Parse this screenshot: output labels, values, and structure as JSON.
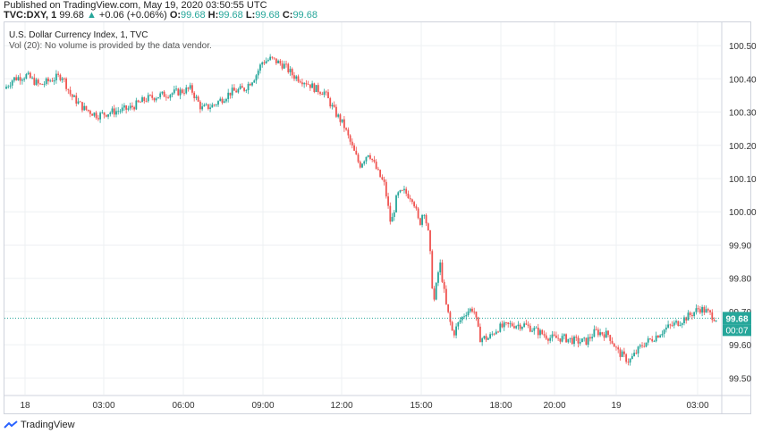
{
  "published": "Published on TradingView.com, May 19, 2020 03:50:55 UTC",
  "ohlc": {
    "symbol": "TVC:DXY, 1",
    "price": "99.68",
    "change": "+0.06 (+0.06%)",
    "o_label": "O:",
    "o": "99.68",
    "h_label": "H:",
    "h": "99.68",
    "l_label": "L:",
    "l": "99.68",
    "c_label": "C:",
    "c": "99.68"
  },
  "legend": {
    "title": "U.S. Dollar Currency Index, 1, TVC",
    "volume_note": "Vol (20): No volume is provided by the data vendor."
  },
  "brand": "TradingView",
  "colors": {
    "up": "#26a69a",
    "down": "#ef5350",
    "current": "#26a69a",
    "grid": "#eef0f3"
  },
  "chart_data": {
    "type": "candlestick",
    "ylim": [
      99.45,
      100.57
    ],
    "y_ticks": [
      "100.50",
      "100.40",
      "100.30",
      "100.20",
      "100.10",
      "100.00",
      "99.90",
      "99.80",
      "99.70",
      "99.60",
      "99.50"
    ],
    "x_ticks": [
      "18",
      "03:00",
      "06:00",
      "09:00",
      "12:00",
      "15:00",
      "18:00",
      "20:00",
      "19",
      "03:00"
    ],
    "current_price": "99.68",
    "countdown": "00:07",
    "price_path": [
      [
        0,
        100.37
      ],
      [
        10,
        100.4
      ],
      [
        25,
        100.41
      ],
      [
        40,
        100.38
      ],
      [
        55,
        100.4
      ],
      [
        65,
        100.41
      ],
      [
        75,
        100.35
      ],
      [
        90,
        100.31
      ],
      [
        105,
        100.29
      ],
      [
        120,
        100.3
      ],
      [
        140,
        100.31
      ],
      [
        160,
        100.34
      ],
      [
        175,
        100.35
      ],
      [
        195,
        100.36
      ],
      [
        210,
        100.37
      ],
      [
        222,
        100.31
      ],
      [
        235,
        100.32
      ],
      [
        255,
        100.36
      ],
      [
        270,
        100.37
      ],
      [
        283,
        100.41
      ],
      [
        290,
        100.45
      ],
      [
        300,
        100.46
      ],
      [
        315,
        100.44
      ],
      [
        325,
        100.41
      ],
      [
        340,
        100.39
      ],
      [
        350,
        100.37
      ],
      [
        360,
        100.36
      ],
      [
        372,
        100.3
      ],
      [
        382,
        100.26
      ],
      [
        392,
        100.19
      ],
      [
        400,
        100.14
      ],
      [
        410,
        100.18
      ],
      [
        420,
        100.12
      ],
      [
        428,
        100.08
      ],
      [
        435,
        99.96
      ],
      [
        442,
        100.05
      ],
      [
        450,
        100.06
      ],
      [
        460,
        100.04
      ],
      [
        467,
        99.96
      ],
      [
        472,
        100.01
      ],
      [
        478,
        99.92
      ],
      [
        483,
        99.72
      ],
      [
        490,
        99.85
      ],
      [
        497,
        99.72
      ],
      [
        505,
        99.63
      ],
      [
        512,
        99.67
      ],
      [
        520,
        99.7
      ],
      [
        528,
        99.71
      ],
      [
        535,
        99.62
      ],
      [
        545,
        99.62
      ],
      [
        555,
        99.65
      ],
      [
        570,
        99.66
      ],
      [
        585,
        99.66
      ],
      [
        600,
        99.64
      ],
      [
        615,
        99.62
      ],
      [
        630,
        99.62
      ],
      [
        645,
        99.61
      ],
      [
        655,
        99.61
      ],
      [
        665,
        99.64
      ],
      [
        680,
        99.63
      ],
      [
        690,
        99.58
      ],
      [
        703,
        99.55
      ],
      [
        718,
        99.6
      ],
      [
        730,
        99.62
      ],
      [
        745,
        99.65
      ],
      [
        760,
        99.67
      ],
      [
        772,
        99.69
      ],
      [
        782,
        99.71
      ],
      [
        790,
        99.7
      ],
      [
        800,
        99.68
      ]
    ]
  }
}
